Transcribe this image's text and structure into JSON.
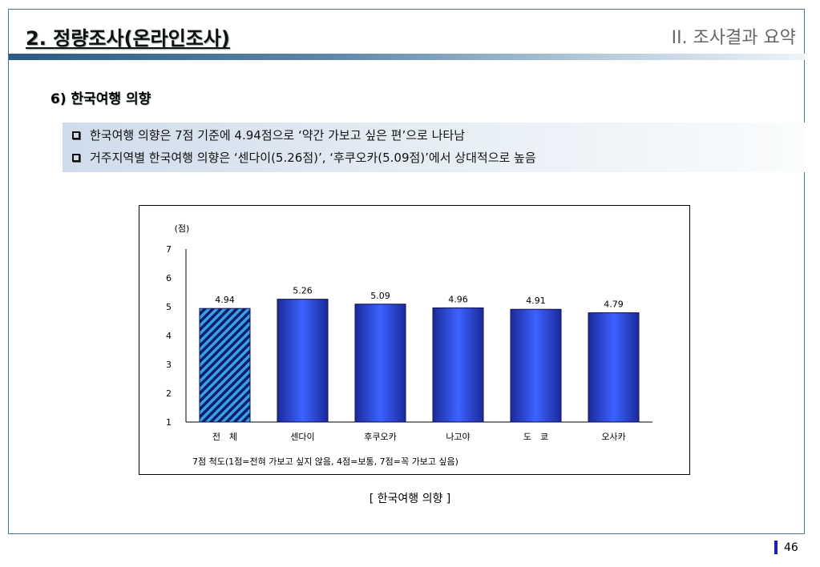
{
  "header": {
    "title": "2. 정량조사(온라인조사)",
    "section": "II. 조사결과 요약"
  },
  "subhead": "6) 한국여행 의향",
  "summary": [
    "한국여행 의향은 7점 기준에 4.94점으로 ‘약간 가보고 싶은 편’으로 나타남",
    "거주지역별 한국여행 의향은 ‘센다이(5.26점)’, ‘후쿠오카(5.09점)’에서 상대적으로 높음"
  ],
  "chart_data": {
    "type": "bar",
    "categories": [
      "전　체",
      "센다이",
      "후쿠오카",
      "나고야",
      "도　쿄",
      "오사카"
    ],
    "values": [
      4.94,
      5.26,
      5.09,
      4.96,
      4.91,
      4.79
    ],
    "value_labels": [
      "4.94",
      "5.26",
      "5.09",
      "4.96",
      "4.91",
      "4.79"
    ],
    "ylabel": "(점)",
    "ylim": [
      1,
      7
    ],
    "yticks": [
      1,
      2,
      3,
      4,
      5,
      6,
      7
    ],
    "grid": false,
    "note": "7점 척도(1점=전혀 가보고 싶지 않음, 4점=보통, 7점=꼭 가보고 싶음)",
    "colors": {
      "bar": "#3355ee",
      "bar_edge": "#101050",
      "hatch": "#0a1e6e",
      "hatch_bg": "#3aa0e0"
    }
  },
  "caption": "[ 한국여행 의향 ]",
  "page_number": "46"
}
